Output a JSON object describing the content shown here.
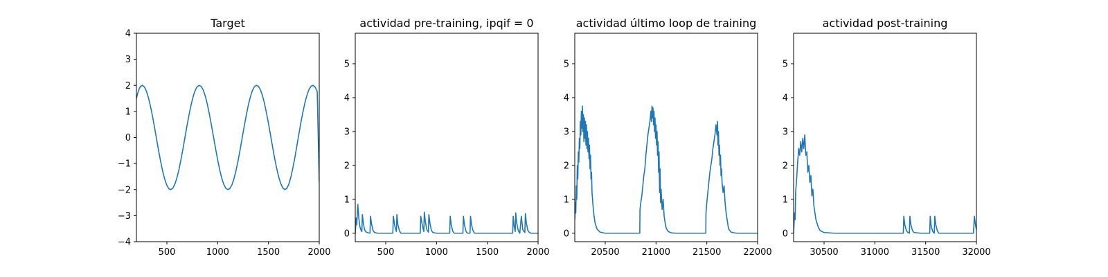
{
  "chart_data": [
    {
      "type": "line",
      "title": "Target",
      "xlabel": "",
      "ylabel": "",
      "xlim": [
        200,
        2000
      ],
      "ylim": [
        -4,
        4
      ],
      "xticks": [
        500,
        1000,
        1500,
        2000
      ],
      "yticks": [
        -4,
        -3,
        -2,
        -1,
        0,
        1,
        2,
        3,
        4
      ],
      "grid": false,
      "series_color": "#1f77b4",
      "series": [
        {
          "x": [
            200,
            220,
            240,
            260,
            280,
            300,
            320,
            340,
            360,
            380,
            400,
            420,
            440,
            460,
            480,
            500,
            520,
            540,
            560,
            580,
            600,
            620,
            640,
            660,
            680,
            700,
            720,
            740,
            760,
            780,
            800,
            820,
            840,
            860,
            880,
            900,
            920,
            940,
            960,
            980,
            1000,
            1020,
            1040,
            1060,
            1080,
            1100,
            1120,
            1140,
            1160,
            1180,
            1200,
            1220,
            1240,
            1260,
            1280,
            1300,
            1320,
            1340,
            1360,
            1380,
            1400,
            1420,
            1440,
            1460,
            1480,
            1500,
            1520,
            1540,
            1560,
            1580,
            1600,
            1620,
            1640,
            1660,
            1680,
            1700,
            1720,
            1740,
            1760,
            1780,
            1800,
            1820,
            1840,
            1860,
            1880,
            1900,
            1920,
            1940,
            1960,
            1980,
            2000
          ],
          "y": [
            1.5,
            1.8,
            1.96,
            2.0,
            1.93,
            1.76,
            1.5,
            1.17,
            0.78,
            0.35,
            -0.1,
            -0.54,
            -0.95,
            -1.32,
            -1.62,
            -1.84,
            -1.97,
            -2.0,
            -1.94,
            -1.78,
            -1.53,
            -1.21,
            -0.82,
            -0.4,
            0.05,
            0.49,
            0.91,
            1.28,
            1.59,
            1.82,
            1.96,
            2.0,
            1.95,
            1.8,
            1.56,
            1.24,
            0.86,
            0.44,
            0.0,
            -0.44,
            -0.86,
            -1.24,
            -1.56,
            -1.8,
            -1.95,
            -2.0,
            -1.96,
            -1.82,
            -1.59,
            -1.28,
            -0.91,
            -0.49,
            -0.05,
            0.4,
            0.82,
            1.21,
            1.53,
            1.78,
            1.94,
            2.0,
            1.97,
            1.84,
            1.62,
            1.32,
            0.95,
            0.54,
            0.1,
            -0.35,
            -0.78,
            -1.17,
            -1.5,
            -1.76,
            -1.93,
            -2.0,
            -1.96,
            -1.8,
            -1.53,
            -1.18,
            -0.77,
            -0.32,
            0.14,
            0.59,
            0.99,
            1.35,
            1.64,
            1.85,
            1.97,
            2.0,
            1.93,
            1.76,
            -1.72
          ]
        }
      ]
    },
    {
      "type": "line",
      "title": "actividad pre-training, ipqif = 0",
      "xlabel": "",
      "ylabel": "",
      "xlim": [
        200,
        2000
      ],
      "ylim": [
        -0.25,
        5.9
      ],
      "xticks": [
        500,
        1000,
        1500,
        2000
      ],
      "yticks": [
        0,
        1,
        2,
        3,
        4,
        5
      ],
      "grid": false,
      "series_color": "#1f77b4",
      "series": [
        {
          "x": [
            200,
            210,
            215,
            225,
            235,
            245,
            255,
            265,
            270,
            280,
            290,
            300,
            310,
            330,
            345,
            350,
            360,
            375,
            390,
            420,
            470,
            520,
            570,
            575,
            590,
            605,
            610,
            620,
            635,
            650,
            700,
            780,
            840,
            845,
            860,
            875,
            880,
            890,
            905,
            920,
            925,
            935,
            950,
            965,
            1000,
            1080,
            1130,
            1135,
            1145,
            1160,
            1175,
            1200,
            1260,
            1265,
            1275,
            1290,
            1305,
            1330,
            1335,
            1345,
            1360,
            1375,
            1420,
            1500,
            1600,
            1700,
            1750,
            1755,
            1765,
            1775,
            1780,
            1790,
            1805,
            1815,
            1820,
            1835,
            1850,
            1870,
            1875,
            1885,
            1900,
            1915,
            1930,
            1960,
            2000
          ],
          "y": [
            0.0,
            0.45,
            0.25,
            0.85,
            0.45,
            0.2,
            0.1,
            0.05,
            0.55,
            0.3,
            0.12,
            0.06,
            0.03,
            0.01,
            0.0,
            0.5,
            0.28,
            0.08,
            0.02,
            0.0,
            0.0,
            0.0,
            0.0,
            0.5,
            0.2,
            0.05,
            0.55,
            0.25,
            0.07,
            0.0,
            0.0,
            0.0,
            0.0,
            0.5,
            0.25,
            0.05,
            0.62,
            0.35,
            0.1,
            0.03,
            0.55,
            0.3,
            0.08,
            0.02,
            0.0,
            0.0,
            0.0,
            0.5,
            0.25,
            0.06,
            0.0,
            0.0,
            0.0,
            0.5,
            0.25,
            0.06,
            0.0,
            0.0,
            0.5,
            0.25,
            0.07,
            0.0,
            0.0,
            0.0,
            0.0,
            0.0,
            0.0,
            0.5,
            0.2,
            0.05,
            0.6,
            0.3,
            0.08,
            0.02,
            0.0,
            0.5,
            0.1,
            0.02,
            0.58,
            0.3,
            0.08,
            0.02,
            0.0,
            0.0,
            0.0
          ]
        }
      ]
    },
    {
      "type": "line",
      "title": "actividad último loop de training",
      "xlabel": "",
      "ylabel": "",
      "xlim": [
        20200,
        22000
      ],
      "ylim": [
        -0.25,
        5.9
      ],
      "xticks": [
        20500,
        21000,
        21500,
        22000
      ],
      "yticks": [
        0,
        1,
        2,
        3,
        4,
        5
      ],
      "grid": false,
      "series_color": "#1f77b4",
      "series": [
        {
          "x": [
            20200,
            20205,
            20210,
            20215,
            20220,
            20225,
            20230,
            20235,
            20240,
            20245,
            20250,
            20255,
            20260,
            20265,
            20270,
            20275,
            20280,
            20285,
            20290,
            20295,
            20300,
            20305,
            20310,
            20315,
            20320,
            20325,
            20330,
            20335,
            20340,
            20345,
            20350,
            20355,
            20360,
            20365,
            20370,
            20380,
            20390,
            20400,
            20420,
            20450,
            20500,
            20600,
            20700,
            20800,
            20840,
            20842,
            20850,
            20860,
            20870,
            20880,
            20890,
            20900,
            20910,
            20920,
            20930,
            20940,
            20950,
            20955,
            20960,
            20965,
            20970,
            20975,
            20980,
            20985,
            20990,
            20995,
            21000,
            21005,
            21010,
            21015,
            21020,
            21025,
            21030,
            21035,
            21040,
            21045,
            21050,
            21060,
            21070,
            21080,
            21090,
            21100,
            21120,
            21150,
            21200,
            21300,
            21400,
            21490,
            21492,
            21500,
            21510,
            21520,
            21530,
            21540,
            21550,
            21560,
            21570,
            21580,
            21590,
            21600,
            21605,
            21610,
            21615,
            21620,
            21625,
            21630,
            21635,
            21640,
            21645,
            21650,
            21660,
            21670,
            21680,
            21690,
            21700,
            21710,
            21720,
            21740,
            21770,
            21800,
            21900,
            22000
          ],
          "y": [
            0.4,
            0.9,
            0.6,
            1.4,
            1.0,
            2.0,
            1.6,
            2.4,
            2.1,
            2.8,
            2.5,
            3.3,
            2.9,
            3.6,
            3.1,
            3.75,
            3.0,
            3.5,
            2.7,
            3.4,
            2.8,
            3.3,
            2.6,
            3.2,
            2.5,
            3.0,
            2.4,
            2.8,
            2.2,
            2.6,
            1.9,
            2.3,
            1.6,
            1.8,
            1.2,
            0.8,
            0.5,
            0.3,
            0.12,
            0.03,
            0.0,
            0.0,
            0.0,
            0.0,
            0.0,
            0.7,
            0.9,
            1.1,
            1.4,
            1.7,
            1.9,
            2.3,
            2.6,
            2.9,
            3.1,
            3.3,
            3.6,
            3.3,
            3.75,
            3.4,
            3.7,
            3.2,
            3.6,
            3.0,
            3.4,
            2.8,
            3.2,
            2.6,
            3.0,
            2.3,
            2.7,
            1.8,
            2.4,
            1.2,
            1.9,
            0.9,
            1.3,
            0.7,
            1.0,
            0.5,
            0.3,
            0.15,
            0.05,
            0.01,
            0.0,
            0.0,
            0.0,
            0.0,
            0.6,
            0.9,
            1.2,
            1.5,
            1.8,
            2.0,
            2.2,
            2.5,
            2.7,
            2.9,
            3.2,
            2.9,
            3.3,
            2.6,
            3.0,
            2.3,
            2.6,
            2.0,
            2.3,
            1.7,
            1.9,
            1.5,
            1.2,
            1.4,
            0.9,
            0.6,
            0.4,
            0.2,
            0.1,
            0.03,
            0.01,
            0.0,
            0.0,
            0.0
          ]
        }
      ]
    },
    {
      "type": "line",
      "title": "actividad post-training",
      "xlabel": "",
      "ylabel": "",
      "xlim": [
        30200,
        32000
      ],
      "ylim": [
        -0.25,
        5.9
      ],
      "xticks": [
        30500,
        31000,
        31500,
        32000
      ],
      "yticks": [
        0,
        1,
        2,
        3,
        4,
        5
      ],
      "grid": false,
      "series_color": "#1f77b4",
      "series": [
        {
          "x": [
            30200,
            30210,
            30215,
            30220,
            30230,
            30240,
            30250,
            30260,
            30270,
            30280,
            30290,
            30300,
            30310,
            30320,
            30330,
            30340,
            30350,
            30360,
            30370,
            30380,
            30390,
            30400,
            30410,
            30420,
            30440,
            30460,
            30500,
            30600,
            30800,
            31000,
            31200,
            31280,
            31285,
            31295,
            31310,
            31325,
            31340,
            31345,
            31355,
            31370,
            31385,
            31450,
            31540,
            31545,
            31555,
            31570,
            31585,
            31590,
            31600,
            31615,
            31630,
            31700,
            31800,
            31900,
            31970,
            31980,
            31990,
            32000
          ],
          "y": [
            0.0,
            0.6,
            0.4,
            1.2,
            1.6,
            2.1,
            2.5,
            2.3,
            2.7,
            2.4,
            2.8,
            2.5,
            2.9,
            2.3,
            2.4,
            1.8,
            2.0,
            1.5,
            1.7,
            1.1,
            1.3,
            0.8,
            0.6,
            0.4,
            0.2,
            0.08,
            0.02,
            0.0,
            0.0,
            0.0,
            0.0,
            0.0,
            0.5,
            0.25,
            0.08,
            0.02,
            0.0,
            0.5,
            0.25,
            0.08,
            0.02,
            0.0,
            0.0,
            0.5,
            0.2,
            0.05,
            0.0,
            0.5,
            0.25,
            0.07,
            0.0,
            0.0,
            0.0,
            0.0,
            0.0,
            0.5,
            0.25,
            0.1
          ]
        }
      ]
    }
  ]
}
